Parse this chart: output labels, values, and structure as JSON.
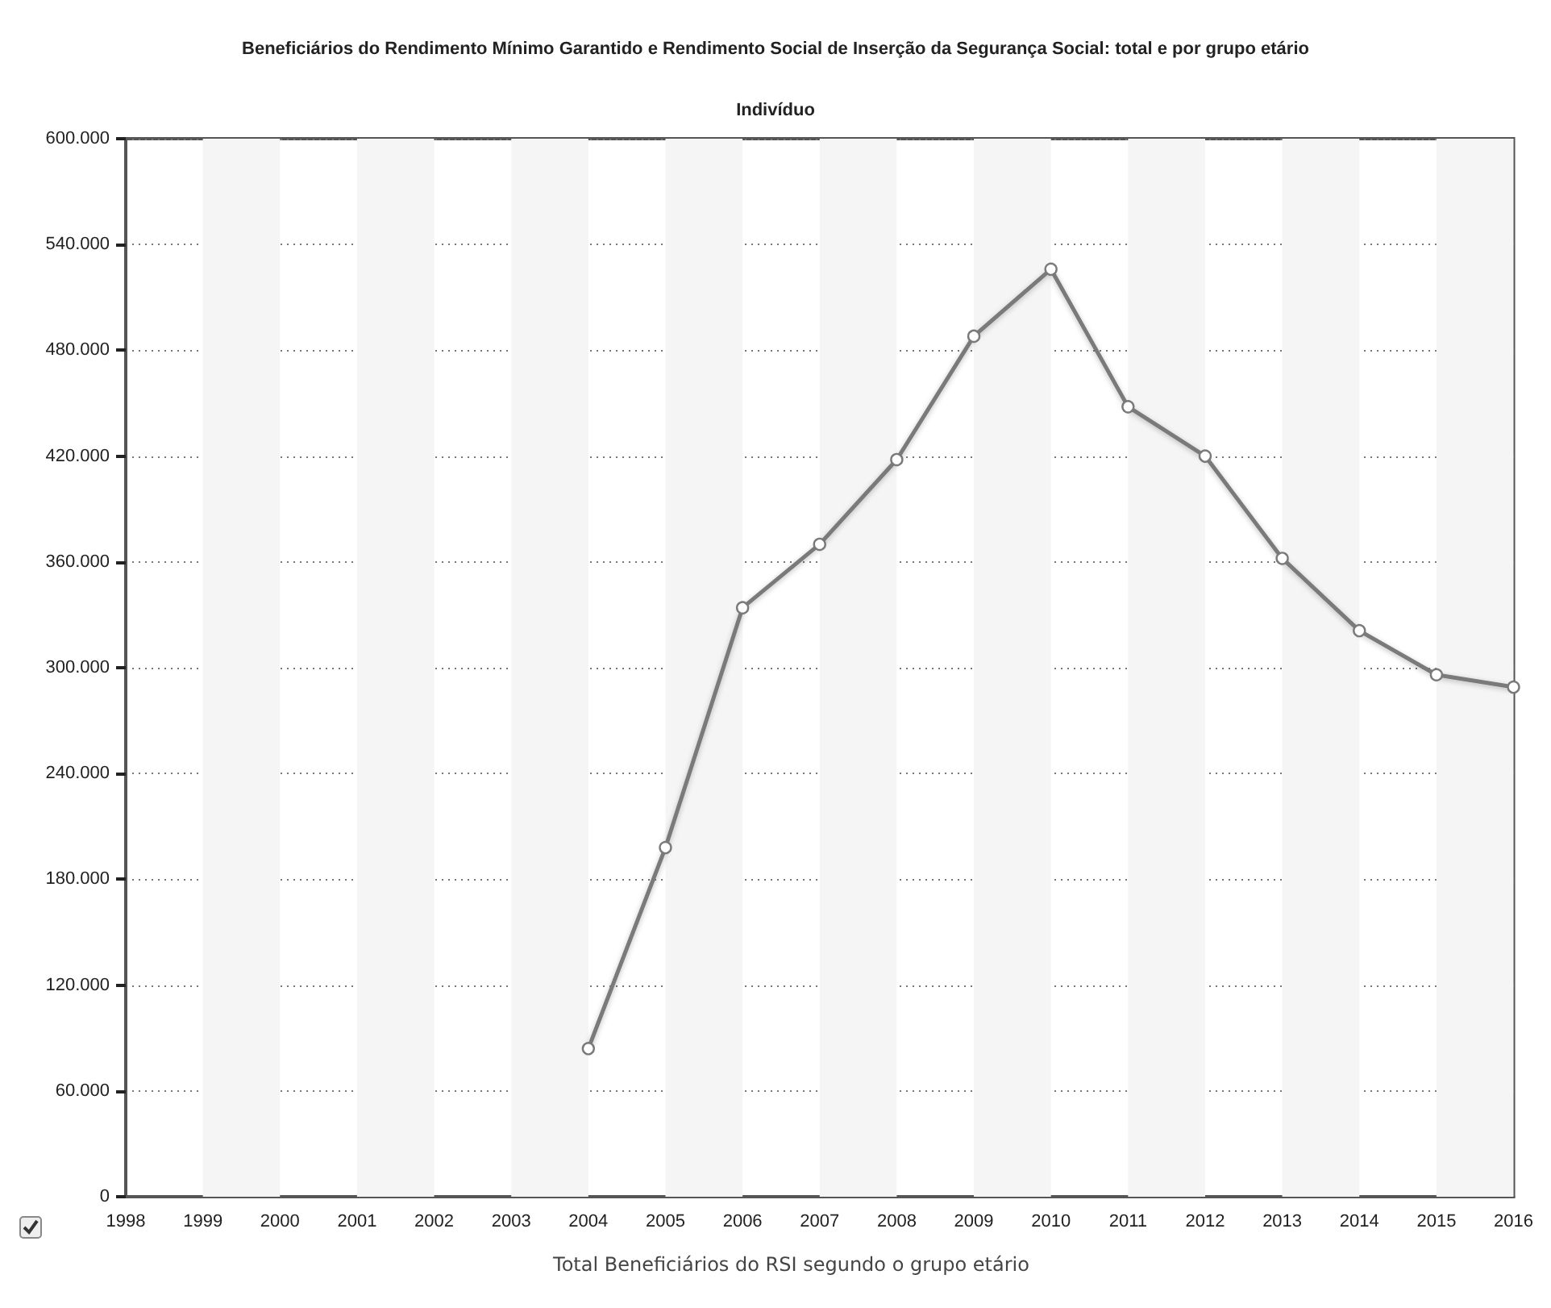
{
  "chart_data": {
    "type": "line",
    "title": "Beneficiários do Rendimento Mínimo Garantido e Rendimento Social de Inserção da Segurança Social: total e por grupo etário",
    "subtitle": "Indivíduo",
    "categories": [
      "1998",
      "1999",
      "2000",
      "2001",
      "2002",
      "2003",
      "2004",
      "2005",
      "2006",
      "2007",
      "2008",
      "2009",
      "2010",
      "2011",
      "2012",
      "2013",
      "2014",
      "2015",
      "2016"
    ],
    "series": [
      {
        "name": "Total Beneficiários do RSI segundo o grupo etário",
        "color": "#7a7a7a",
        "values": [
          null,
          null,
          null,
          null,
          null,
          null,
          84000,
          198000,
          334000,
          370000,
          418000,
          488000,
          526000,
          448000,
          420000,
          362000,
          321000,
          296000,
          289000
        ]
      }
    ],
    "ylim": [
      0,
      600000
    ],
    "yticks": [
      {
        "value": 0,
        "label": "0"
      },
      {
        "value": 60000,
        "label": "60.000"
      },
      {
        "value": 120000,
        "label": "120.000"
      },
      {
        "value": 180000,
        "label": "180.000"
      },
      {
        "value": 240000,
        "label": "240.000"
      },
      {
        "value": 300000,
        "label": "300.000"
      },
      {
        "value": 360000,
        "label": "360.000"
      },
      {
        "value": 420000,
        "label": "420.000"
      },
      {
        "value": 480000,
        "label": "480.000"
      },
      {
        "value": 540000,
        "label": "540.000"
      },
      {
        "value": 600000,
        "label": "600.000"
      }
    ],
    "bands": [
      {
        "axis": "x",
        "from": "1999",
        "to": "2000",
        "color": "#f5f5f5"
      },
      {
        "axis": "x",
        "from": "2001",
        "to": "2002",
        "color": "#f5f5f5"
      },
      {
        "axis": "x",
        "from": "2003",
        "to": "2004",
        "color": "#f5f5f5"
      },
      {
        "axis": "x",
        "from": "2005",
        "to": "2006",
        "color": "#f5f5f5"
      },
      {
        "axis": "x",
        "from": "2007",
        "to": "2008",
        "color": "#f5f5f5"
      },
      {
        "axis": "x",
        "from": "2009",
        "to": "2010",
        "color": "#f5f5f5"
      },
      {
        "axis": "x",
        "from": "2011",
        "to": "2012",
        "color": "#f5f5f5"
      },
      {
        "axis": "x",
        "from": "2013",
        "to": "2014",
        "color": "#f5f5f5"
      },
      {
        "axis": "x",
        "from": "2015",
        "to": "2016",
        "color": "#f5f5f5"
      }
    ],
    "grid": "y",
    "legend": "bottom",
    "marker": "circle",
    "line_style": "solid"
  }
}
